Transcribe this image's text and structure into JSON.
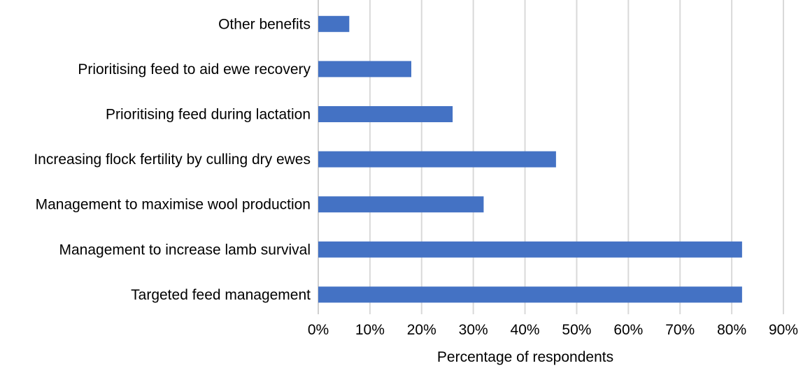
{
  "chart_data": {
    "type": "bar",
    "orientation": "horizontal",
    "categories": [
      "Other benefits",
      "Prioritising feed to aid ewe recovery",
      "Prioritising feed during lactation",
      "Increasing flock fertility by culling dry ewes",
      "Management to maximise wool production",
      "Management to increase lamb survival",
      "Targeted feed management"
    ],
    "values": [
      6,
      18,
      26,
      46,
      32,
      82,
      82
    ],
    "xlabel": "Percentage of respondents",
    "ylabel": "",
    "xlim": [
      0,
      90
    ],
    "x_ticks": [
      0,
      10,
      20,
      30,
      40,
      50,
      60,
      70,
      80,
      90
    ],
    "tick_suffix": "%",
    "grid": true,
    "legend": "none",
    "colors": {
      "bar": "#4472C4",
      "grid": "#D9D9D9",
      "axis": "#BFBFBF"
    }
  }
}
